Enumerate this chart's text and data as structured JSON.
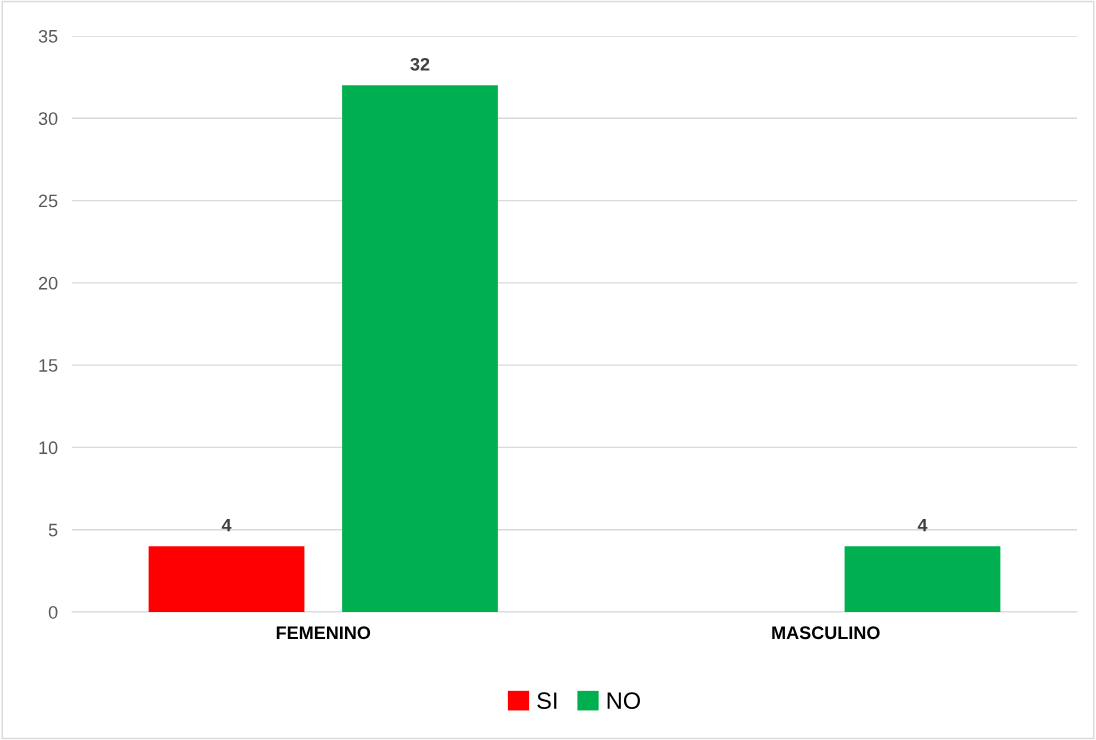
{
  "chart_data": {
    "type": "bar",
    "categories": [
      "FEMENINO",
      "MASCULINO"
    ],
    "series": [
      {
        "name": "SI",
        "color": "#ff0000",
        "values": [
          4,
          null
        ]
      },
      {
        "name": "NO",
        "color": "#00b050",
        "values": [
          32,
          4
        ]
      }
    ],
    "ylim": [
      0,
      35
    ],
    "yticks": [
      0,
      5,
      10,
      15,
      20,
      25,
      30,
      35
    ],
    "grid": "y",
    "legend": "bottom",
    "data_labels": true
  }
}
